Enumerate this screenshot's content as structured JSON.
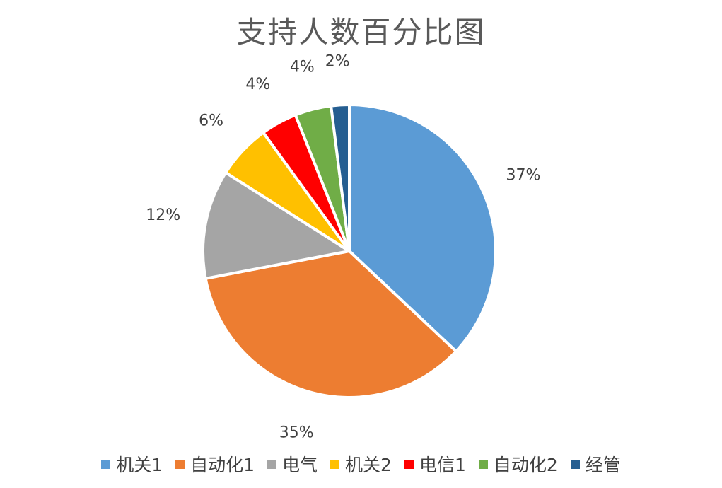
{
  "chart_data": {
    "type": "pie",
    "title": "支持人数百分比图",
    "categories": [
      "机关1",
      "自动化1",
      "电气",
      "机关2",
      "电信1",
      "自动化2",
      "经管"
    ],
    "values": [
      37,
      35,
      12,
      6,
      4,
      4,
      2
    ],
    "labels": [
      "37%",
      "35%",
      "12%",
      "6%",
      "4%",
      "4%",
      "2%"
    ],
    "colors": [
      "#5B9BD5",
      "#ED7D31",
      "#A5A5A5",
      "#FFC000",
      "#FF0000",
      "#70AD47",
      "#255E91"
    ],
    "legend_position": "bottom"
  }
}
